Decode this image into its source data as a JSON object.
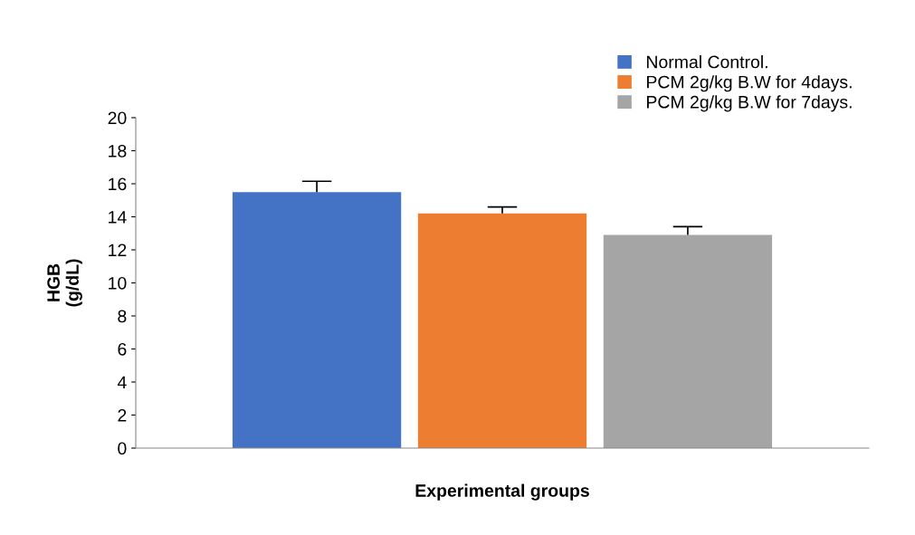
{
  "chart_data": {
    "type": "bar",
    "xlabel": "Experimental groups",
    "ylabel": "HGB\n(g/dL)",
    "categories": [
      null
    ],
    "series": [
      {
        "name": "Normal Control.",
        "color": "#4472c4",
        "values": [
          15.5
        ],
        "errors": [
          [
            15.5,
            16.15
          ]
        ]
      },
      {
        "name": "PCM 2g/kg B.W for 4days.",
        "color": "#ed7d31",
        "values": [
          14.2
        ],
        "errors": [
          [
            14.2,
            14.6
          ]
        ]
      },
      {
        "name": "PCM 2g/kg B.W for 7days.",
        "color": "#a5a5a5",
        "values": [
          12.9
        ],
        "errors": [
          [
            12.9,
            13.4
          ]
        ]
      }
    ],
    "ylim": [
      0,
      20
    ],
    "yticks": [
      0,
      2,
      4,
      6,
      8,
      10,
      12,
      14,
      16,
      18,
      20
    ],
    "grid": false,
    "legend": "top right"
  }
}
